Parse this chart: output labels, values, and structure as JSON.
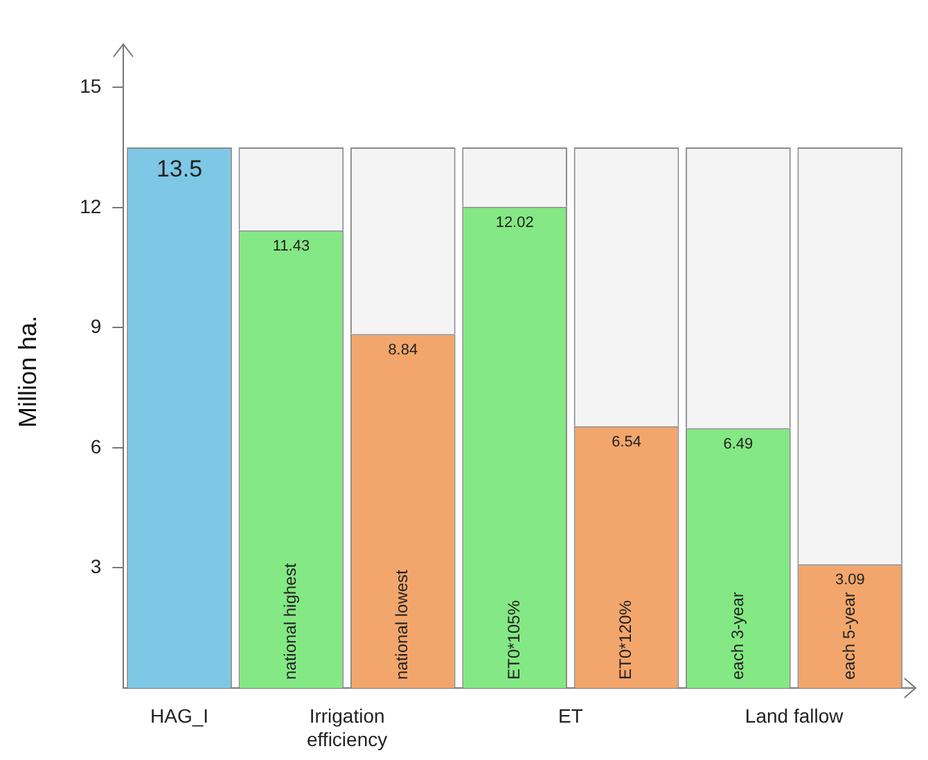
{
  "chart_data": {
    "type": "bar",
    "ylabel": "Million ha.",
    "categories": [
      "HAG_I",
      "Irrigation efficiency",
      null,
      "ET",
      null,
      "Land fallow",
      null
    ],
    "stacked": true,
    "series": [
      {
        "colors": [
          "#7ec8e6",
          "#84e884",
          "#f2a66c",
          "#84e884",
          "#f2a66c",
          "#84e884",
          "#f2a66c"
        ],
        "values": [
          13.5,
          11.43,
          8.84,
          12.02,
          6.54,
          6.49,
          3.09
        ],
        "value_labels": [
          "13.5",
          "11.43",
          "8.84",
          "12.02",
          "6.54",
          "6.49",
          "3.09"
        ]
      },
      {
        "color": "#f4f4f4",
        "values": [
          null,
          2.07,
          4.66,
          1.48,
          6.96,
          7.01,
          10.41
        ]
      }
    ],
    "ylim": [
      0,
      15.8
    ],
    "yticks": [
      3,
      6,
      9,
      12,
      15
    ],
    "grid": false,
    "legend": false,
    "annotations": [
      "national highest",
      "national lowest",
      "ET0*105%",
      "ET0*120%",
      "each 3-year",
      "each 5-year"
    ]
  }
}
